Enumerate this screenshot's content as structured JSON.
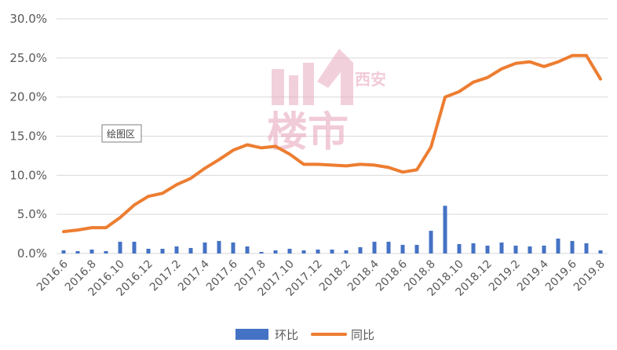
{
  "chart_data": {
    "type": "bar",
    "categories": [
      "2016.6",
      "2016.7",
      "2016.8",
      "2016.9",
      "2016.10",
      "2016.11",
      "2016.12",
      "2017.1",
      "2017.2",
      "2017.3",
      "2017.4",
      "2017.5",
      "2017.6",
      "2017.7",
      "2017.8",
      "2017.9",
      "2017.10",
      "2017.11",
      "2017.12",
      "2018.1",
      "2018.2",
      "2018.3",
      "2018.4",
      "2018.5",
      "2018.6",
      "2018.7",
      "2018.8",
      "2018.9",
      "2018.10",
      "2018.11",
      "2018.12",
      "2019.1",
      "2019.2",
      "2019.3",
      "2019.4",
      "2019.5",
      "2019.6",
      "2019.7",
      "2019.8"
    ],
    "x_tick_labels": [
      "2016.6",
      "2016.8",
      "2016.10",
      "2016.12",
      "2017.2",
      "2017.4",
      "2017.6",
      "2017.8",
      "2017.10",
      "2017.12",
      "2018.2",
      "2018.4",
      "2018.6",
      "2018.8",
      "2018.10",
      "2018.12",
      "2019.2",
      "2019.4",
      "2019.6",
      "2019.8"
    ],
    "series": [
      {
        "name": "环比",
        "type": "bar",
        "color": "#4472c4",
        "values": [
          0.4,
          0.3,
          0.5,
          0.3,
          1.5,
          1.5,
          0.6,
          0.6,
          0.9,
          0.7,
          1.4,
          1.6,
          1.4,
          0.9,
          0.2,
          0.4,
          0.6,
          0.4,
          0.5,
          0.5,
          0.4,
          0.8,
          1.5,
          1.5,
          1.1,
          1.1,
          2.9,
          6.1,
          1.2,
          1.3,
          1.0,
          1.4,
          1.0,
          0.9,
          1.0,
          1.9,
          1.6,
          1.3,
          0.4
        ]
      },
      {
        "name": "同比",
        "type": "line",
        "color": "#ed7d31",
        "values": [
          2.8,
          3.0,
          3.3,
          3.3,
          4.6,
          6.2,
          7.3,
          7.7,
          8.8,
          9.6,
          10.9,
          12.0,
          13.2,
          13.9,
          13.5,
          13.7,
          12.7,
          11.4,
          11.4,
          11.3,
          11.2,
          11.4,
          11.3,
          11.0,
          10.4,
          10.7,
          13.6,
          20.0,
          20.7,
          21.9,
          22.5,
          23.6,
          24.3,
          24.5,
          23.9,
          24.5,
          25.3,
          25.3,
          22.3
        ]
      }
    ],
    "ylim": [
      0,
      30
    ],
    "y_tick_labels": [
      "0.0%",
      "5.0%",
      "10.0%",
      "15.0%",
      "20.0%",
      "25.0%",
      "30.0%"
    ],
    "grid": true,
    "legend_position": "bottom",
    "tooltip": "绘图区",
    "watermark": {
      "chinese_top": "西安",
      "chinese_main": "楼市"
    }
  }
}
